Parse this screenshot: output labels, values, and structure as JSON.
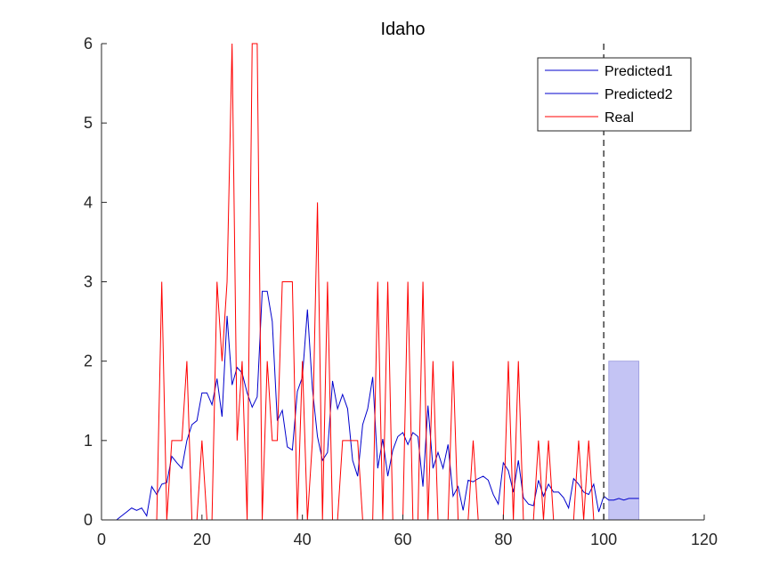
{
  "chart_data": {
    "type": "line",
    "title": "Idaho",
    "xlabel": "",
    "ylabel": "",
    "xlim": [
      0,
      120
    ],
    "ylim": [
      0,
      6
    ],
    "xticks": [
      0,
      20,
      40,
      60,
      80,
      100,
      120
    ],
    "yticks": [
      0,
      1,
      2,
      3,
      4,
      5,
      6
    ],
    "grid": false,
    "legend_position": "top-right",
    "vline": {
      "x": 100,
      "style": "dashed",
      "color": "#404040"
    },
    "band": {
      "x_start": 101,
      "x_end": 107,
      "y_low": 0,
      "y_high": 2,
      "color": "#c4c4f4"
    },
    "series": [
      {
        "name": "Predicted1",
        "color": "#0000cc",
        "x": [
          2,
          3,
          4,
          5,
          6,
          7,
          8,
          9,
          10,
          11,
          12,
          13,
          14,
          15,
          16,
          17,
          18,
          19,
          20,
          21,
          22,
          23,
          24,
          25,
          26,
          27,
          28,
          29,
          30,
          31,
          32,
          33,
          34,
          35,
          36,
          37,
          38,
          39,
          40,
          41,
          42,
          43,
          44,
          45,
          46,
          47,
          48,
          49,
          50,
          51,
          52,
          53,
          54,
          55,
          56,
          57,
          58,
          59,
          60,
          61,
          62,
          63,
          64,
          65,
          66,
          67,
          68,
          69,
          70,
          71,
          72,
          73,
          74,
          75,
          76,
          77,
          78,
          79,
          80,
          81,
          82,
          83,
          84,
          85,
          86,
          87,
          88,
          89,
          90,
          91,
          92,
          93,
          94,
          95,
          96,
          97,
          98,
          99,
          100
        ],
        "y": [
          0,
          0,
          0.05,
          0.1,
          0.15,
          0.12,
          0.15,
          0.05,
          0.42,
          0.32,
          0.45,
          0.47,
          0.8,
          0.72,
          0.65,
          1.0,
          1.2,
          1.25,
          1.6,
          1.6,
          1.45,
          1.78,
          1.3,
          2.57,
          1.7,
          1.92,
          1.85,
          1.6,
          1.42,
          1.55,
          2.88,
          2.88,
          2.5,
          1.25,
          1.38,
          0.92,
          0.88,
          1.62,
          1.8,
          2.65,
          1.65,
          1.05,
          0.75,
          0.85,
          1.75,
          1.4,
          1.58,
          1.4,
          0.75,
          0.55,
          1.2,
          1.4,
          1.8,
          0.65,
          1.02,
          0.55,
          0.88,
          1.05,
          1.1,
          0.95,
          1.1,
          1.05,
          0.42,
          1.44,
          0.65,
          0.85,
          0.65,
          0.95,
          0.3,
          0.42,
          0.12,
          0.5,
          0.48,
          0.52,
          0.55,
          0.5,
          0.32,
          0.2,
          0.72,
          0.62,
          0.35,
          0.75,
          0.28,
          0.2,
          0.18,
          0.5,
          0.3,
          0.45,
          0.35,
          0.35,
          0.28,
          0.15,
          0.52,
          0.45,
          0.35,
          0.32,
          0.45,
          0.1,
          0.3
        ]
      },
      {
        "name": "Predicted2",
        "color": "#0000cc",
        "x": [
          100,
          101,
          102,
          103,
          104,
          105,
          106,
          107
        ],
        "y": [
          0.3,
          0.25,
          0.25,
          0.27,
          0.25,
          0.27,
          0.27,
          0.27
        ]
      },
      {
        "name": "Real",
        "color": "#ff0000",
        "x": [
          1,
          11,
          12,
          13,
          14,
          15,
          16,
          17,
          18,
          19,
          20,
          21,
          22,
          23,
          24,
          25,
          26,
          27,
          28,
          29,
          30,
          31,
          32,
          33,
          34,
          35,
          36,
          37,
          38,
          39,
          40,
          41,
          42,
          43,
          44,
          45,
          46,
          47,
          48,
          49,
          50,
          51,
          52,
          53,
          54,
          55,
          56,
          57,
          58,
          59,
          60,
          61,
          62,
          63,
          64,
          65,
          66,
          67,
          68,
          69,
          70,
          71,
          72,
          73,
          74,
          75,
          76,
          77,
          78,
          79,
          80,
          81,
          82,
          83,
          84,
          85,
          86,
          87,
          88,
          89,
          90,
          91,
          92,
          93,
          94,
          95,
          96,
          97,
          98,
          99,
          100,
          101,
          102,
          103,
          104,
          105,
          106,
          107
        ],
        "y": [
          0,
          0,
          3,
          0,
          1,
          1,
          1,
          2,
          0,
          0,
          1,
          0,
          0,
          3,
          2,
          3,
          6,
          1,
          2,
          0,
          6,
          6,
          0,
          2,
          1,
          1,
          3,
          3,
          3,
          0,
          2,
          0,
          1,
          4,
          0,
          3,
          0,
          0,
          1,
          1,
          1,
          1,
          0,
          0,
          0,
          3,
          0,
          3,
          0,
          0,
          0,
          3,
          0,
          0,
          3,
          0,
          2,
          0,
          0,
          0,
          2,
          0,
          0,
          0,
          1,
          0,
          0,
          0,
          0,
          0,
          0,
          2,
          0,
          2,
          0,
          0,
          0,
          1,
          0,
          1,
          0,
          0,
          0,
          0,
          0,
          1,
          0,
          1,
          0,
          0,
          0,
          0,
          0,
          0,
          0,
          0,
          0,
          0
        ]
      }
    ]
  }
}
